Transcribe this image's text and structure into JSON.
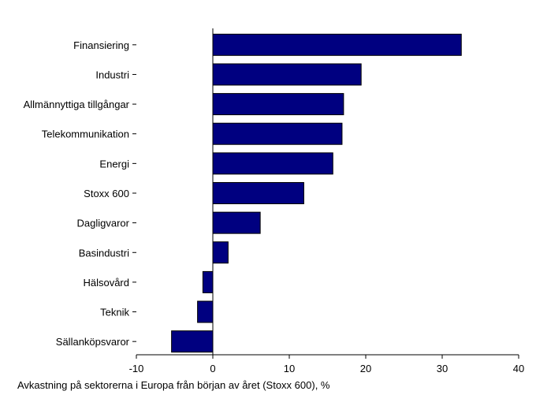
{
  "chart_data": {
    "type": "bar",
    "orientation": "horizontal",
    "categories": [
      "Finansiering",
      "Industri",
      "Allmännyttiga tillgångar",
      "Telekommunikation",
      "Energi",
      "Stoxx 600",
      "Dagligvaror",
      "Basindustri",
      "Hälsovård",
      "Teknik",
      "Sällanköpsvaror"
    ],
    "values": [
      32.5,
      19.4,
      17.1,
      16.9,
      15.7,
      11.9,
      6.2,
      2.0,
      -1.3,
      -2.0,
      -5.4
    ],
    "xlim": [
      -10,
      40
    ],
    "xticks": [
      "-10",
      "0",
      "10",
      "20",
      "30",
      "40"
    ],
    "xlabel": "Avkastning på sektorerna i Europa från början av året (Stoxx 600), %",
    "grid": false,
    "bar_color": "#000080"
  }
}
